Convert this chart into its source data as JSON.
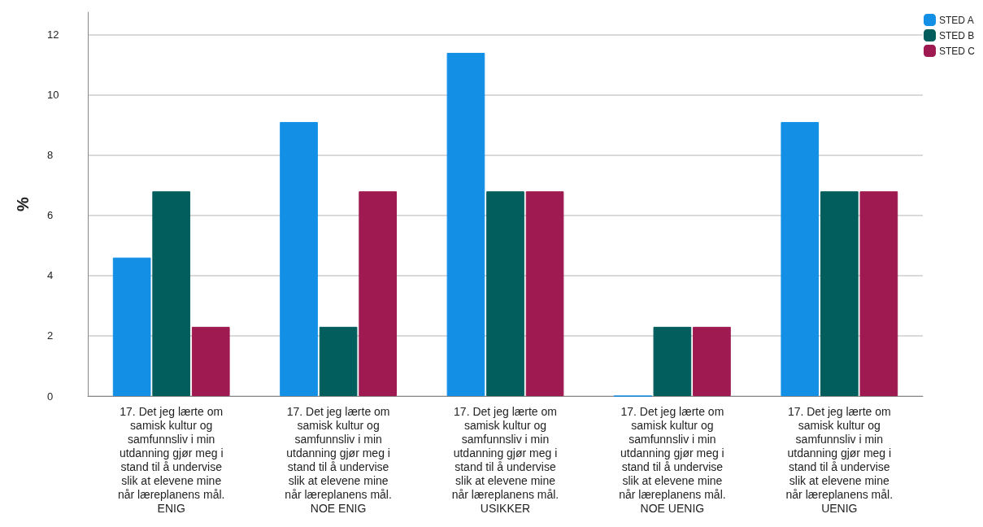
{
  "chart_data": {
    "type": "bar",
    "ylabel": "%",
    "categories": [
      "17. Det jeg lærte om\nsamisk kultur og\nsamfunnsliv i min\nutdanning gjør meg i\nstand til å undervise\nslik at elevene mine\nnår læreplanens mål.\nENIG",
      "17. Det jeg lærte om\nsamisk kultur og\nsamfunnsliv i min\nutdanning gjør meg i\nstand til å undervise\nslik at elevene mine\nnår læreplanens mål.\nNOE ENIG",
      "17. Det jeg lærte om\nsamisk kultur og\nsamfunnsliv i min\nutdanning gjør meg i\nstand til å undervise\nslik at elevene mine\nnår læreplanens mål.\nUSIKKER",
      "17. Det jeg lærte om\nsamisk kultur og\nsamfunnsliv i min\nutdanning gjør meg i\nstand til å undervise\nslik at elevene mine\nnår læreplanens mål.\nNOE UENIG",
      "17. Det jeg lærte om\nsamisk kultur og\nsamfunnsliv i min\nutdanning gjør meg i\nstand til å undervise\nslik at elevene mine\nnår læreplanens mål.\nUENIG"
    ],
    "series": [
      {
        "name": "STED A",
        "color": "#1390e6",
        "values": [
          4.6,
          9.1,
          11.4,
          0,
          9.1
        ]
      },
      {
        "name": "STED B",
        "color": "#025e5c",
        "values": [
          6.8,
          2.3,
          6.8,
          2.3,
          6.8
        ]
      },
      {
        "name": "STED C",
        "color": "#9e1a50",
        "values": [
          2.3,
          6.8,
          6.8,
          2.3,
          6.8
        ]
      }
    ],
    "ylim": [
      0,
      12.75
    ],
    "yticks": [
      0,
      2,
      4,
      6,
      8,
      10,
      12
    ],
    "grid": "y",
    "legend": "top right"
  }
}
